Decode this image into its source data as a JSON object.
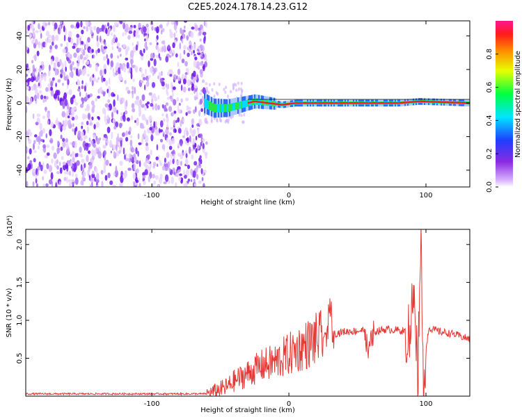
{
  "title": "C2E5.2024.178.14.23.G12",
  "chart_data": [
    {
      "type": "heatmap",
      "xlabel": "Height of straight line (km)",
      "ylabel": "Frequency (Hz)",
      "xlim": [
        -192,
        132
      ],
      "ylim": [
        -50,
        49
      ],
      "xticks": [
        -100,
        0,
        100
      ],
      "yticks": [
        -40,
        -20,
        0,
        20,
        40
      ],
      "colorbar": {
        "label": "Normalized spectral amplitude",
        "range": [
          0,
          1
        ],
        "ticks": [
          "0.0",
          "0.2",
          "0.4",
          "0.6",
          "0.8"
        ]
      },
      "signal_trace": {
        "x": [
          -62,
          -55,
          -45,
          -35,
          -25,
          -15,
          -5,
          5,
          20,
          40,
          60,
          80,
          95,
          132
        ],
        "y": [
          0,
          -3,
          -3,
          -1,
          1,
          0,
          -1,
          0,
          0,
          0,
          0,
          0,
          1,
          0
        ]
      },
      "noise_region_x": [
        -192,
        -60
      ]
    },
    {
      "type": "line",
      "xlabel": "Height of straight line (km)",
      "ylabel": "SNR (10 * v/v)",
      "yscale_label": "(x10⁴)",
      "xlim": [
        -192,
        132
      ],
      "ylim": [
        0,
        2.2
      ],
      "xticks": [
        -100,
        0,
        100
      ],
      "yticks": [
        0.5,
        1.0,
        1.5,
        2.0
      ],
      "series": [
        {
          "color": "#e53935",
          "x": [
            -192,
            -150,
            -100,
            -60,
            -45,
            -40,
            -30,
            -20,
            -10,
            0,
            10,
            20,
            28,
            30,
            32,
            40,
            50,
            55,
            58,
            62,
            70,
            80,
            88,
            92,
            94,
            96,
            98,
            102,
            110,
            120,
            132
          ],
          "y": [
            0.03,
            0.03,
            0.03,
            0.03,
            0.12,
            0.2,
            0.3,
            0.4,
            0.45,
            0.55,
            0.65,
            0.75,
            0.8,
            1.3,
            0.82,
            0.85,
            0.86,
            0.87,
            0.55,
            0.85,
            0.88,
            0.87,
            0.85,
            1.5,
            0.15,
            2.2,
            0.3,
            0.9,
            0.85,
            0.82,
            0.75
          ]
        }
      ]
    }
  ]
}
